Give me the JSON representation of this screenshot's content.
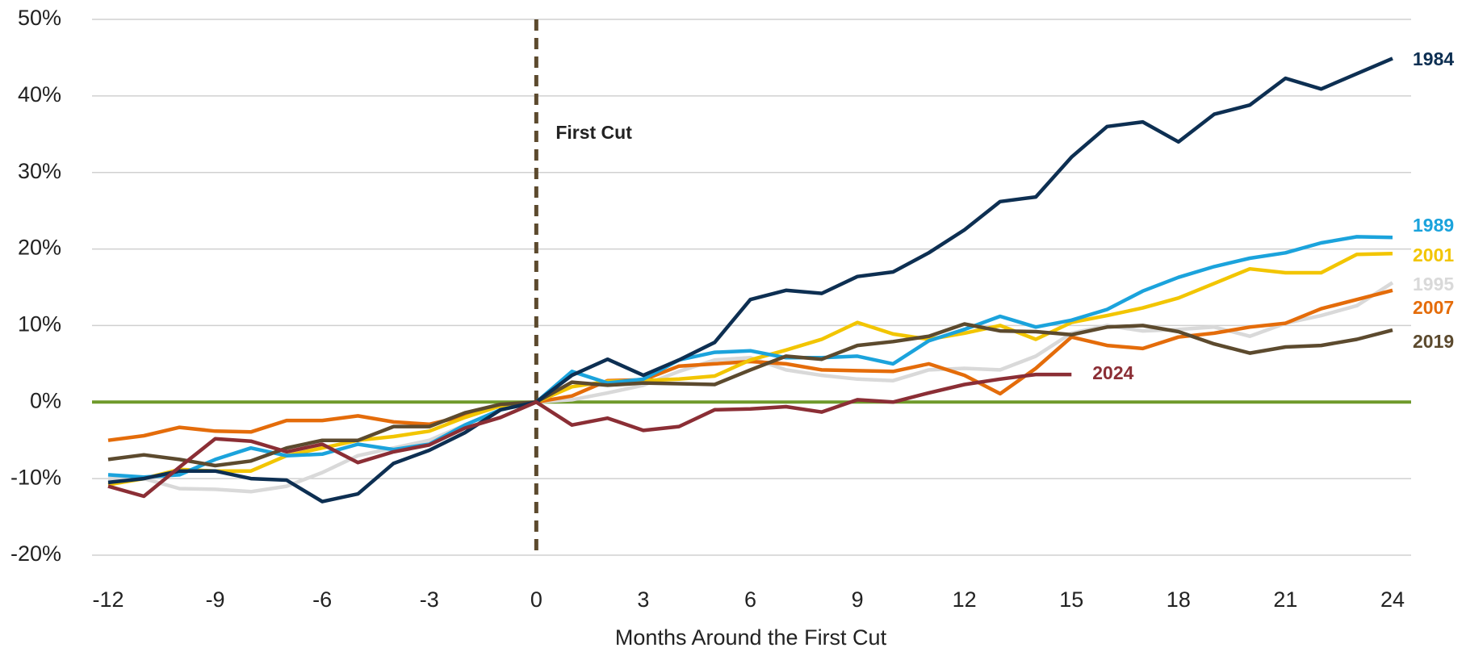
{
  "chart_data": {
    "type": "line",
    "x_label": "Months Around the First Cut",
    "x": [
      -12,
      -11,
      -10,
      -9,
      -8,
      -7,
      -6,
      -5,
      -4,
      -3,
      -2,
      -1,
      0,
      1,
      2,
      3,
      4,
      5,
      6,
      7,
      8,
      9,
      10,
      11,
      12,
      13,
      14,
      15,
      16,
      17,
      18,
      19,
      20,
      21,
      22,
      23,
      24
    ],
    "xlim": [
      -12,
      24
    ],
    "xticks": [
      -12,
      -9,
      -6,
      -3,
      0,
      3,
      6,
      9,
      12,
      15,
      18,
      21,
      24
    ],
    "ylim": [
      -20,
      50
    ],
    "yticks": [
      {
        "value": -20,
        "label": "-20%"
      },
      {
        "value": -10,
        "label": "-10%"
      },
      {
        "value": 0,
        "label": "0%"
      },
      {
        "value": 10,
        "label": "10%"
      },
      {
        "value": 20,
        "label": "20%"
      },
      {
        "value": 30,
        "label": "30%"
      },
      {
        "value": 40,
        "label": "40%"
      },
      {
        "value": 50,
        "label": "50%"
      }
    ],
    "grid": true,
    "baseline": {
      "value": 0,
      "color": "#6f9a2b"
    },
    "annotation": {
      "x": 0,
      "text": "First Cut",
      "color": "#5c4a2e"
    },
    "series": [
      {
        "name": "1995",
        "color": "#d9d9d9",
        "values": [
          -10,
          -10,
          -11.3,
          -11.4,
          -11.7,
          -11,
          -9.2,
          -7,
          -6,
          -5,
          -3,
          -1,
          0,
          0.3,
          1.2,
          2.2,
          4,
          5.5,
          5.8,
          4.2,
          3.5,
          3,
          2.8,
          4.2,
          4.4,
          4.2,
          6,
          9,
          10,
          9.3,
          9.5,
          9.8,
          8.6,
          10.3,
          11.3,
          12.6,
          15.6
        ]
      },
      {
        "name": "2007",
        "color": "#e46c0a",
        "values": [
          -5,
          -4.4,
          -3.3,
          -3.8,
          -3.9,
          -2.4,
          -2.4,
          -1.8,
          -2.6,
          -2.9,
          -1.8,
          -0.5,
          0,
          0.8,
          2.8,
          2.9,
          4.7,
          5,
          5.3,
          5,
          4.2,
          4.1,
          4,
          5,
          3.5,
          1.1,
          4.4,
          8.5,
          7.4,
          7,
          8.5,
          9,
          9.8,
          10.3,
          12.2,
          13.4,
          14.6
        ]
      },
      {
        "name": "2001",
        "color": "#f2c500",
        "values": [
          -10.8,
          -10,
          -8.8,
          -9,
          -9,
          -7,
          -6,
          -5,
          -4.5,
          -3.8,
          -2,
          -0.5,
          0,
          2,
          2.7,
          2.8,
          3,
          3.4,
          5.5,
          6.8,
          8.2,
          10.4,
          8.9,
          8.2,
          9,
          10,
          8.2,
          10.4,
          11.3,
          12.3,
          13.6,
          15.5,
          17.4,
          16.9,
          16.9,
          19.3,
          19.4
        ]
      },
      {
        "name": "1989",
        "color": "#1ba3dc",
        "values": [
          -9.5,
          -9.8,
          -9.5,
          -7.5,
          -6,
          -7,
          -6.8,
          -5.5,
          -6.2,
          -5.5,
          -3,
          -1,
          0,
          4,
          2.5,
          3,
          5.5,
          6.5,
          6.7,
          5.8,
          5.8,
          6,
          5,
          8,
          9.5,
          11.2,
          9.8,
          10.7,
          12.1,
          14.5,
          16.3,
          17.7,
          18.8,
          19.5,
          20.8,
          21.6,
          21.5
        ]
      },
      {
        "name": "2019",
        "color": "#5c4a2e",
        "values": [
          -7.5,
          -6.9,
          -7.5,
          -8.3,
          -7.7,
          -6,
          -5,
          -5,
          -3.2,
          -3.2,
          -1.4,
          -0.3,
          0,
          2.6,
          2.2,
          2.5,
          2.4,
          2.3,
          4.2,
          6,
          5.6,
          7.4,
          7.9,
          8.6,
          10.2,
          9.3,
          9.2,
          8.8,
          9.8,
          10,
          9.2,
          7.6,
          6.4,
          7.2,
          7.4,
          8.2,
          9.4
        ]
      },
      {
        "name": "1984",
        "color": "#0d2f52",
        "values": [
          -10.5,
          -10,
          -9,
          -9,
          -10,
          -10.2,
          -13,
          -12,
          -8,
          -6.3,
          -4,
          -1,
          0,
          3.5,
          5.6,
          3.5,
          5.5,
          7.8,
          13.4,
          14.6,
          14.2,
          16.4,
          17,
          19.5,
          22.5,
          26.2,
          26.8,
          32,
          36,
          36.6,
          34,
          37.6,
          38.8,
          42.3,
          40.9,
          42.9,
          44.9
        ]
      },
      {
        "name": "2024",
        "color": "#8b2e35",
        "values": [
          -11,
          -12.3,
          -8.5,
          -4.8,
          -5.1,
          -6.5,
          -5.5,
          -7.9,
          -6.5,
          -5.6,
          -3.4,
          -2,
          0,
          -3,
          -2.1,
          -3.7,
          -3.2,
          -1,
          -0.9,
          -0.6,
          -1.3,
          0.3,
          0,
          1.2,
          2.3,
          3,
          3.6,
          3.6,
          null,
          null,
          null,
          null,
          null,
          null,
          null,
          null,
          null
        ]
      }
    ]
  }
}
